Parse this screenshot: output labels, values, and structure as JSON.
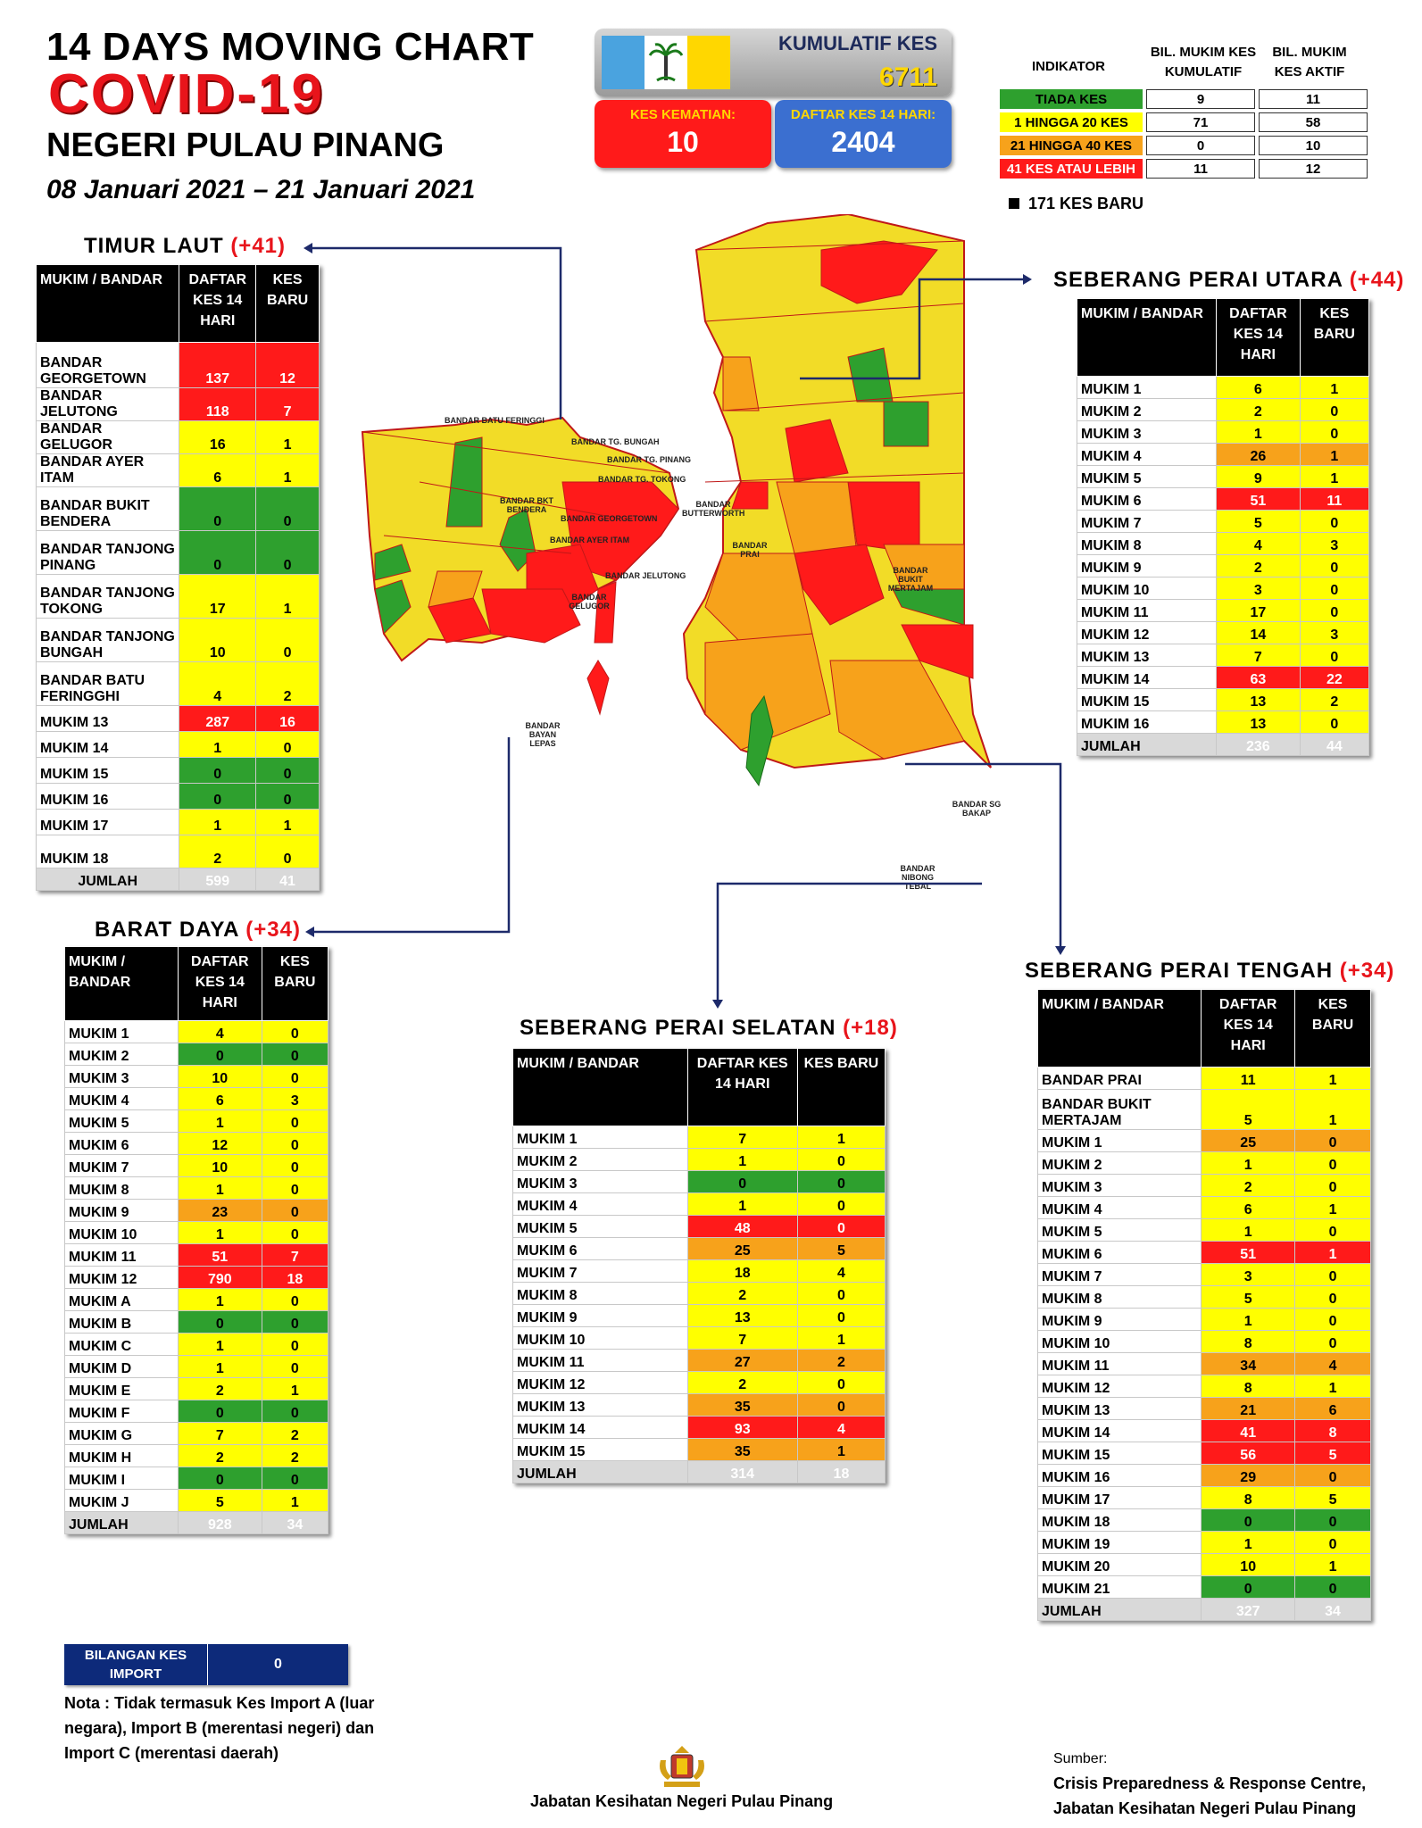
{
  "header": {
    "line1": "14  DAYS MOVING CHART",
    "line2": "COVID-19",
    "line3": "NEGERI PULAU PINANG",
    "dates": "08 Januari 2021 – 21 Januari 2021"
  },
  "summary": {
    "kumulatif_label": "KUMULATIF KES",
    "kumulatif_value": "6711",
    "kematian_label": "KES KEMATIAN:",
    "kematian_value": "10",
    "daftar_label": "DAFTAR KES 14 HARI:",
    "daftar_value": "2404"
  },
  "indicator": {
    "col1": "INDIKATOR",
    "col2": "BIL. MUKIM KES KUMULATIF",
    "col3": "BIL. MUKIM KES AKTIF",
    "rows": [
      {
        "label": "TIADA KES",
        "kumulatif": "9",
        "aktif": "11",
        "color": "#2ea02e"
      },
      {
        "label": "1 HINGGA 20 KES",
        "kumulatif": "71",
        "aktif": "58",
        "color": "#ffff00"
      },
      {
        "label": "21 HINGGA 40 KES",
        "kumulatif": "0",
        "aktif": "10",
        "color": "#f7a21b"
      },
      {
        "label": "41 KES ATAU LEBIH",
        "kumulatif": "11",
        "aktif": "12",
        "color": "#ff1a1a"
      }
    ],
    "new_cases": "171 KES BARU"
  },
  "timur_laut": {
    "title": "TIMUR LAUT",
    "plus": "(+41)",
    "h1": "MUKIM / BANDAR",
    "h2": "DAFTAR KES 14 HARI",
    "h3": "KES BARU",
    "rows": [
      {
        "n": "BANDAR GEORGETOWN",
        "a": "137",
        "b": "12",
        "ca": "r",
        "cb": "r",
        "h": 50
      },
      {
        "n": "BANDAR JELUTONG",
        "a": "118",
        "b": "7",
        "ca": "r",
        "cb": "r",
        "h": 26
      },
      {
        "n": "BANDAR GELUGOR",
        "a": "16",
        "b": "1",
        "ca": "y",
        "cb": "y",
        "h": 22
      },
      {
        "n": "BANDAR AYER ITAM",
        "a": "6",
        "b": "1",
        "ca": "y",
        "cb": "y",
        "h": 22
      },
      {
        "n": "BANDAR BUKIT BENDERA",
        "a": "0",
        "b": "0",
        "ca": "g",
        "cb": "g",
        "h": 48
      },
      {
        "n": "BANDAR TANJONG PINANG",
        "a": "0",
        "b": "0",
        "ca": "g",
        "cb": "g",
        "h": 48
      },
      {
        "n": "BANDAR TANJONG TOKONG",
        "a": "17",
        "b": "1",
        "ca": "y",
        "cb": "y",
        "h": 48
      },
      {
        "n": "BANDAR TANJONG BUNGAH",
        "a": "10",
        "b": "0",
        "ca": "y",
        "cb": "y",
        "h": 48
      },
      {
        "n": "BANDAR BATU FERINGGHI",
        "a": "4",
        "b": "2",
        "ca": "y",
        "cb": "y",
        "h": 48
      },
      {
        "n": "MUKIM 13",
        "a": "287",
        "b": "16",
        "ca": "r",
        "cb": "r",
        "h": 28
      },
      {
        "n": "MUKIM 14",
        "a": "1",
        "b": "0",
        "ca": "y",
        "cb": "y",
        "h": 28
      },
      {
        "n": "MUKIM 15",
        "a": "0",
        "b": "0",
        "ca": "g",
        "cb": "g",
        "h": 28
      },
      {
        "n": "MUKIM 16",
        "a": "0",
        "b": "0",
        "ca": "g",
        "cb": "g",
        "h": 28
      },
      {
        "n": "MUKIM 17",
        "a": "1",
        "b": "1",
        "ca": "y",
        "cb": "y",
        "h": 28
      },
      {
        "n": "MUKIM 18",
        "a": "2",
        "b": "0",
        "ca": "y",
        "cb": "y",
        "h": 36
      }
    ],
    "total_label": "JUMLAH",
    "total_a": "599",
    "total_b": "41"
  },
  "barat_daya": {
    "title": "BARAT DAYA",
    "plus": "(+34)",
    "h1": "MUKIM / BANDAR",
    "h2": "DAFTAR KES 14 HARI",
    "h3": "KES BARU",
    "rows": [
      {
        "n": "MUKIM 1",
        "a": "4",
        "b": "0",
        "ca": "y",
        "cb": "y"
      },
      {
        "n": "MUKIM 2",
        "a": "0",
        "b": "0",
        "ca": "g",
        "cb": "g"
      },
      {
        "n": "MUKIM 3",
        "a": "10",
        "b": "0",
        "ca": "y",
        "cb": "y"
      },
      {
        "n": "MUKIM 4",
        "a": "6",
        "b": "3",
        "ca": "y",
        "cb": "y"
      },
      {
        "n": "MUKIM 5",
        "a": "1",
        "b": "0",
        "ca": "y",
        "cb": "y"
      },
      {
        "n": "MUKIM 6",
        "a": "12",
        "b": "0",
        "ca": "y",
        "cb": "y"
      },
      {
        "n": "MUKIM 7",
        "a": "10",
        "b": "0",
        "ca": "y",
        "cb": "y"
      },
      {
        "n": "MUKIM 8",
        "a": "1",
        "b": "0",
        "ca": "y",
        "cb": "y"
      },
      {
        "n": "MUKIM 9",
        "a": "23",
        "b": "0",
        "ca": "o",
        "cb": "o"
      },
      {
        "n": "MUKIM 10",
        "a": "1",
        "b": "0",
        "ca": "y",
        "cb": "y"
      },
      {
        "n": "MUKIM 11",
        "a": "51",
        "b": "7",
        "ca": "r",
        "cb": "r"
      },
      {
        "n": "MUKIM 12",
        "a": "790",
        "b": "18",
        "ca": "r",
        "cb": "r"
      },
      {
        "n": "MUKIM A",
        "a": "1",
        "b": "0",
        "ca": "y",
        "cb": "y"
      },
      {
        "n": "MUKIM B",
        "a": "0",
        "b": "0",
        "ca": "g",
        "cb": "g"
      },
      {
        "n": "MUKIM C",
        "a": "1",
        "b": "0",
        "ca": "y",
        "cb": "y"
      },
      {
        "n": "MUKIM D",
        "a": "1",
        "b": "0",
        "ca": "y",
        "cb": "y"
      },
      {
        "n": "MUKIM E",
        "a": "2",
        "b": "1",
        "ca": "y",
        "cb": "y"
      },
      {
        "n": "MUKIM F",
        "a": "0",
        "b": "0",
        "ca": "g",
        "cb": "g"
      },
      {
        "n": "MUKIM G",
        "a": "7",
        "b": "2",
        "ca": "y",
        "cb": "y"
      },
      {
        "n": "MUKIM H",
        "a": "2",
        "b": "2",
        "ca": "y",
        "cb": "y"
      },
      {
        "n": "MUKIM I",
        "a": "0",
        "b": "0",
        "ca": "g",
        "cb": "g"
      },
      {
        "n": "MUKIM J",
        "a": "5",
        "b": "1",
        "ca": "y",
        "cb": "y"
      }
    ],
    "total_label": "JUMLAH",
    "total_a": "928",
    "total_b": "34"
  },
  "spu": {
    "title": "SEBERANG PERAI UTARA",
    "plus": "(+44)",
    "h1": "MUKIM / BANDAR",
    "h2": "DAFTAR KES 14 HARI",
    "h3": "KES BARU",
    "rows": [
      {
        "n": "MUKIM 1",
        "a": "6",
        "b": "1",
        "ca": "y",
        "cb": "y"
      },
      {
        "n": "MUKIM 2",
        "a": "2",
        "b": "0",
        "ca": "y",
        "cb": "y"
      },
      {
        "n": "MUKIM 3",
        "a": "1",
        "b": "0",
        "ca": "y",
        "cb": "y"
      },
      {
        "n": "MUKIM 4",
        "a": "26",
        "b": "1",
        "ca": "o",
        "cb": "o"
      },
      {
        "n": "MUKIM 5",
        "a": "9",
        "b": "1",
        "ca": "y",
        "cb": "y"
      },
      {
        "n": "MUKIM 6",
        "a": "51",
        "b": "11",
        "ca": "r",
        "cb": "r"
      },
      {
        "n": "MUKIM 7",
        "a": "5",
        "b": "0",
        "ca": "y",
        "cb": "y"
      },
      {
        "n": "MUKIM 8",
        "a": "4",
        "b": "3",
        "ca": "y",
        "cb": "y"
      },
      {
        "n": "MUKIM 9",
        "a": "2",
        "b": "0",
        "ca": "y",
        "cb": "y"
      },
      {
        "n": "MUKIM 10",
        "a": "3",
        "b": "0",
        "ca": "y",
        "cb": "y"
      },
      {
        "n": "MUKIM 11",
        "a": "17",
        "b": "0",
        "ca": "y",
        "cb": "y"
      },
      {
        "n": "MUKIM 12",
        "a": "14",
        "b": "3",
        "ca": "y",
        "cb": "y"
      },
      {
        "n": "MUKIM 13",
        "a": "7",
        "b": "0",
        "ca": "y",
        "cb": "y"
      },
      {
        "n": "MUKIM 14",
        "a": "63",
        "b": "22",
        "ca": "r",
        "cb": "r"
      },
      {
        "n": "MUKIM 15",
        "a": "13",
        "b": "2",
        "ca": "y",
        "cb": "y"
      },
      {
        "n": "MUKIM 16",
        "a": "13",
        "b": "0",
        "ca": "y",
        "cb": "y"
      }
    ],
    "total_label": "JUMLAH",
    "total_a": "236",
    "total_b": "44"
  },
  "sps": {
    "title": "SEBERANG PERAI SELATAN",
    "plus": "(+18)",
    "h1": "MUKIM / BANDAR",
    "h2": "DAFTAR KES 14 HARI",
    "h3": "KES BARU",
    "rows": [
      {
        "n": "MUKIM 1",
        "a": "7",
        "b": "1",
        "ca": "y",
        "cb": "y"
      },
      {
        "n": "MUKIM 2",
        "a": "1",
        "b": "0",
        "ca": "y",
        "cb": "y"
      },
      {
        "n": "MUKIM 3",
        "a": "0",
        "b": "0",
        "ca": "g",
        "cb": "g"
      },
      {
        "n": "MUKIM 4",
        "a": "1",
        "b": "0",
        "ca": "y",
        "cb": "y"
      },
      {
        "n": "MUKIM 5",
        "a": "48",
        "b": "0",
        "ca": "r",
        "cb": "r"
      },
      {
        "n": "MUKIM 6",
        "a": "25",
        "b": "5",
        "ca": "o",
        "cb": "o"
      },
      {
        "n": "MUKIM 7",
        "a": "18",
        "b": "4",
        "ca": "y",
        "cb": "y"
      },
      {
        "n": "MUKIM 8",
        "a": "2",
        "b": "0",
        "ca": "y",
        "cb": "y"
      },
      {
        "n": "MUKIM 9",
        "a": "13",
        "b": "0",
        "ca": "y",
        "cb": "y"
      },
      {
        "n": "MUKIM 10",
        "a": "7",
        "b": "1",
        "ca": "y",
        "cb": "y"
      },
      {
        "n": "MUKIM 11",
        "a": "27",
        "b": "2",
        "ca": "o",
        "cb": "o"
      },
      {
        "n": "MUKIM 12",
        "a": "2",
        "b": "0",
        "ca": "y",
        "cb": "y"
      },
      {
        "n": "MUKIM 13",
        "a": "35",
        "b": "0",
        "ca": "o",
        "cb": "o"
      },
      {
        "n": "MUKIM 14",
        "a": "93",
        "b": "4",
        "ca": "r",
        "cb": "r"
      },
      {
        "n": "MUKIM 15",
        "a": "35",
        "b": "1",
        "ca": "o",
        "cb": "o"
      }
    ],
    "total_label": "JUMLAH",
    "total_a": "314",
    "total_b": "18"
  },
  "spt": {
    "title": "SEBERANG PERAI TENGAH",
    "plus": "(+34)",
    "h1": "MUKIM / BANDAR",
    "h2": "DAFTAR KES 14 HARI",
    "h3": "KES BARU",
    "rows": [
      {
        "n": "BANDAR PRAI",
        "a": "11",
        "b": "1",
        "ca": "y",
        "cb": "y",
        "h": 24
      },
      {
        "n": "BANDAR BUKIT MERTAJAM",
        "a": "5",
        "b": "1",
        "ca": "y",
        "cb": "y",
        "h": 44
      },
      {
        "n": "MUKIM 1",
        "a": "25",
        "b": "0",
        "ca": "o",
        "cb": "o"
      },
      {
        "n": "MUKIM 2",
        "a": "1",
        "b": "0",
        "ca": "y",
        "cb": "y"
      },
      {
        "n": "MUKIM 3",
        "a": "2",
        "b": "0",
        "ca": "y",
        "cb": "y"
      },
      {
        "n": "MUKIM 4",
        "a": "6",
        "b": "1",
        "ca": "y",
        "cb": "y"
      },
      {
        "n": "MUKIM 5",
        "a": "1",
        "b": "0",
        "ca": "y",
        "cb": "y"
      },
      {
        "n": "MUKIM 6",
        "a": "51",
        "b": "1",
        "ca": "r",
        "cb": "r"
      },
      {
        "n": "MUKIM 7",
        "a": "3",
        "b": "0",
        "ca": "y",
        "cb": "y"
      },
      {
        "n": "MUKIM 8",
        "a": "5",
        "b": "0",
        "ca": "y",
        "cb": "y"
      },
      {
        "n": "MUKIM 9",
        "a": "1",
        "b": "0",
        "ca": "y",
        "cb": "y"
      },
      {
        "n": "MUKIM 10",
        "a": "8",
        "b": "0",
        "ca": "y",
        "cb": "y"
      },
      {
        "n": "MUKIM 11",
        "a": "34",
        "b": "4",
        "ca": "o",
        "cb": "o"
      },
      {
        "n": "MUKIM 12",
        "a": "8",
        "b": "1",
        "ca": "y",
        "cb": "y"
      },
      {
        "n": "MUKIM 13",
        "a": "21",
        "b": "6",
        "ca": "o",
        "cb": "o"
      },
      {
        "n": "MUKIM 14",
        "a": "41",
        "b": "8",
        "ca": "r",
        "cb": "r"
      },
      {
        "n": "MUKIM 15",
        "a": "56",
        "b": "5",
        "ca": "r",
        "cb": "r"
      },
      {
        "n": "MUKIM 16",
        "a": "29",
        "b": "0",
        "ca": "o",
        "cb": "o"
      },
      {
        "n": "MUKIM 17",
        "a": "8",
        "b": "5",
        "ca": "y",
        "cb": "y"
      },
      {
        "n": "MUKIM 18",
        "a": "0",
        "b": "0",
        "ca": "g",
        "cb": "g"
      },
      {
        "n": "MUKIM 19",
        "a": "1",
        "b": "0",
        "ca": "y",
        "cb": "y"
      },
      {
        "n": "MUKIM 20",
        "a": "10",
        "b": "1",
        "ca": "y",
        "cb": "y"
      },
      {
        "n": "MUKIM 21",
        "a": "0",
        "b": "0",
        "ca": "g",
        "cb": "g"
      }
    ],
    "total_label": "JUMLAH",
    "total_a": "327",
    "total_b": "34"
  },
  "import": {
    "label": "BILANGAN KES IMPORT",
    "value": "0",
    "note": "Nota : Tidak termasuk Kes Import A (luar negara), Import B (merentasi negeri) dan Import C (merentasi daerah)"
  },
  "map_labels": {
    "batu_feringgi": "BANDAR BATU FERINGGI",
    "tg_bungah": "BANDAR TG. BUNGAH",
    "tg_pinang": "BANDAR TG. PINANG",
    "tg_tokong": "BANDAR TG. TOKONG",
    "georgetown": "BANDAR GEORGETOWN",
    "ayer_itam": "BANDAR AYER ITAM",
    "jelutong": "BANDAR JELUTONG",
    "gelugor": "BANDAR GELUGOR",
    "bkt_bendera": "BANDAR BKT BENDERA",
    "butterworth": "BANDAR BUTTERWORTH",
    "prai": "BANDAR PRAI",
    "bkt_mertajam": "BANDAR BUKIT MERTAJAM",
    "sg_bakap": "BANDAR SG BAKAP",
    "nibong_tebal": "BANDAR NIBONG TEBAL",
    "bayan_lepas": "BANDAR BAYAN LEPAS"
  },
  "footer": {
    "dept": "Jabatan Kesihatan Negeri Pulau Pinang",
    "sumber": "Sumber:",
    "src1": "Crisis Preparedness & Response Centre,",
    "src2": "Jabatan Kesihatan Negeri Pulau Pinang"
  },
  "colors": {
    "green": "#2ea02e",
    "yellow": "#ffff00",
    "orange": "#f7a21b",
    "red": "#ff1a1a",
    "navy": "#0d2a7a"
  }
}
